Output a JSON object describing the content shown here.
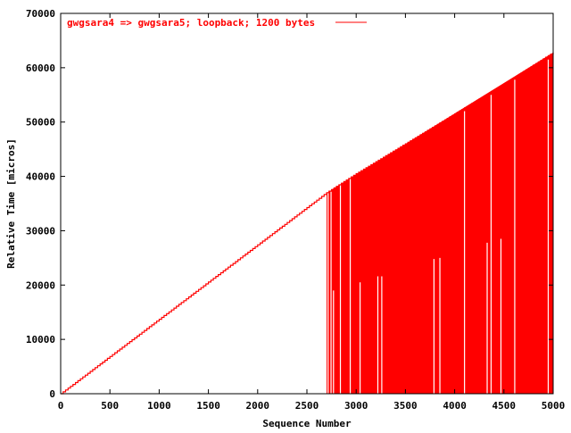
{
  "chart_data": {
    "type": "line",
    "title": "",
    "xlabel": "Sequence Number",
    "ylabel": "Relative Time [micros]",
    "xlim": [
      0,
      5000
    ],
    "ylim": [
      0,
      70000
    ],
    "x_ticks": [
      0,
      500,
      1000,
      1500,
      2000,
      2500,
      3000,
      3500,
      4000,
      4500,
      5000
    ],
    "y_ticks": [
      0,
      10000,
      20000,
      30000,
      40000,
      50000,
      60000,
      70000
    ],
    "grid": false,
    "legend": "top-left",
    "series": [
      {
        "name": "gwgsara4 => gwgsara5; loopback; 1200 bytes",
        "color": "#ff0000",
        "baseline": [
          [
            0,
            0
          ],
          [
            2700,
            37000
          ],
          [
            3000,
            40500
          ],
          [
            3500,
            46000
          ],
          [
            4000,
            51500
          ],
          [
            4500,
            57000
          ],
          [
            5000,
            62800
          ]
        ],
        "fill_from_x": 2700,
        "spikes_to_zero": true,
        "gaps": [
          {
            "x": 2715,
            "y": 37200
          },
          {
            "x": 2745,
            "y": 37500
          },
          {
            "x": 2770,
            "y": 19000
          },
          {
            "x": 2840,
            "y": 38600
          },
          {
            "x": 2940,
            "y": 40000
          },
          {
            "x": 3040,
            "y": 20500
          },
          {
            "x": 3220,
            "y": 21600
          },
          {
            "x": 3260,
            "y": 21600
          },
          {
            "x": 3790,
            "y": 24800
          },
          {
            "x": 3850,
            "y": 25000
          },
          {
            "x": 4100,
            "y": 52000
          },
          {
            "x": 4330,
            "y": 27800
          },
          {
            "x": 4370,
            "y": 55000
          },
          {
            "x": 4470,
            "y": 28500
          },
          {
            "x": 4610,
            "y": 57800
          },
          {
            "x": 4950,
            "y": 61500
          }
        ]
      }
    ]
  }
}
